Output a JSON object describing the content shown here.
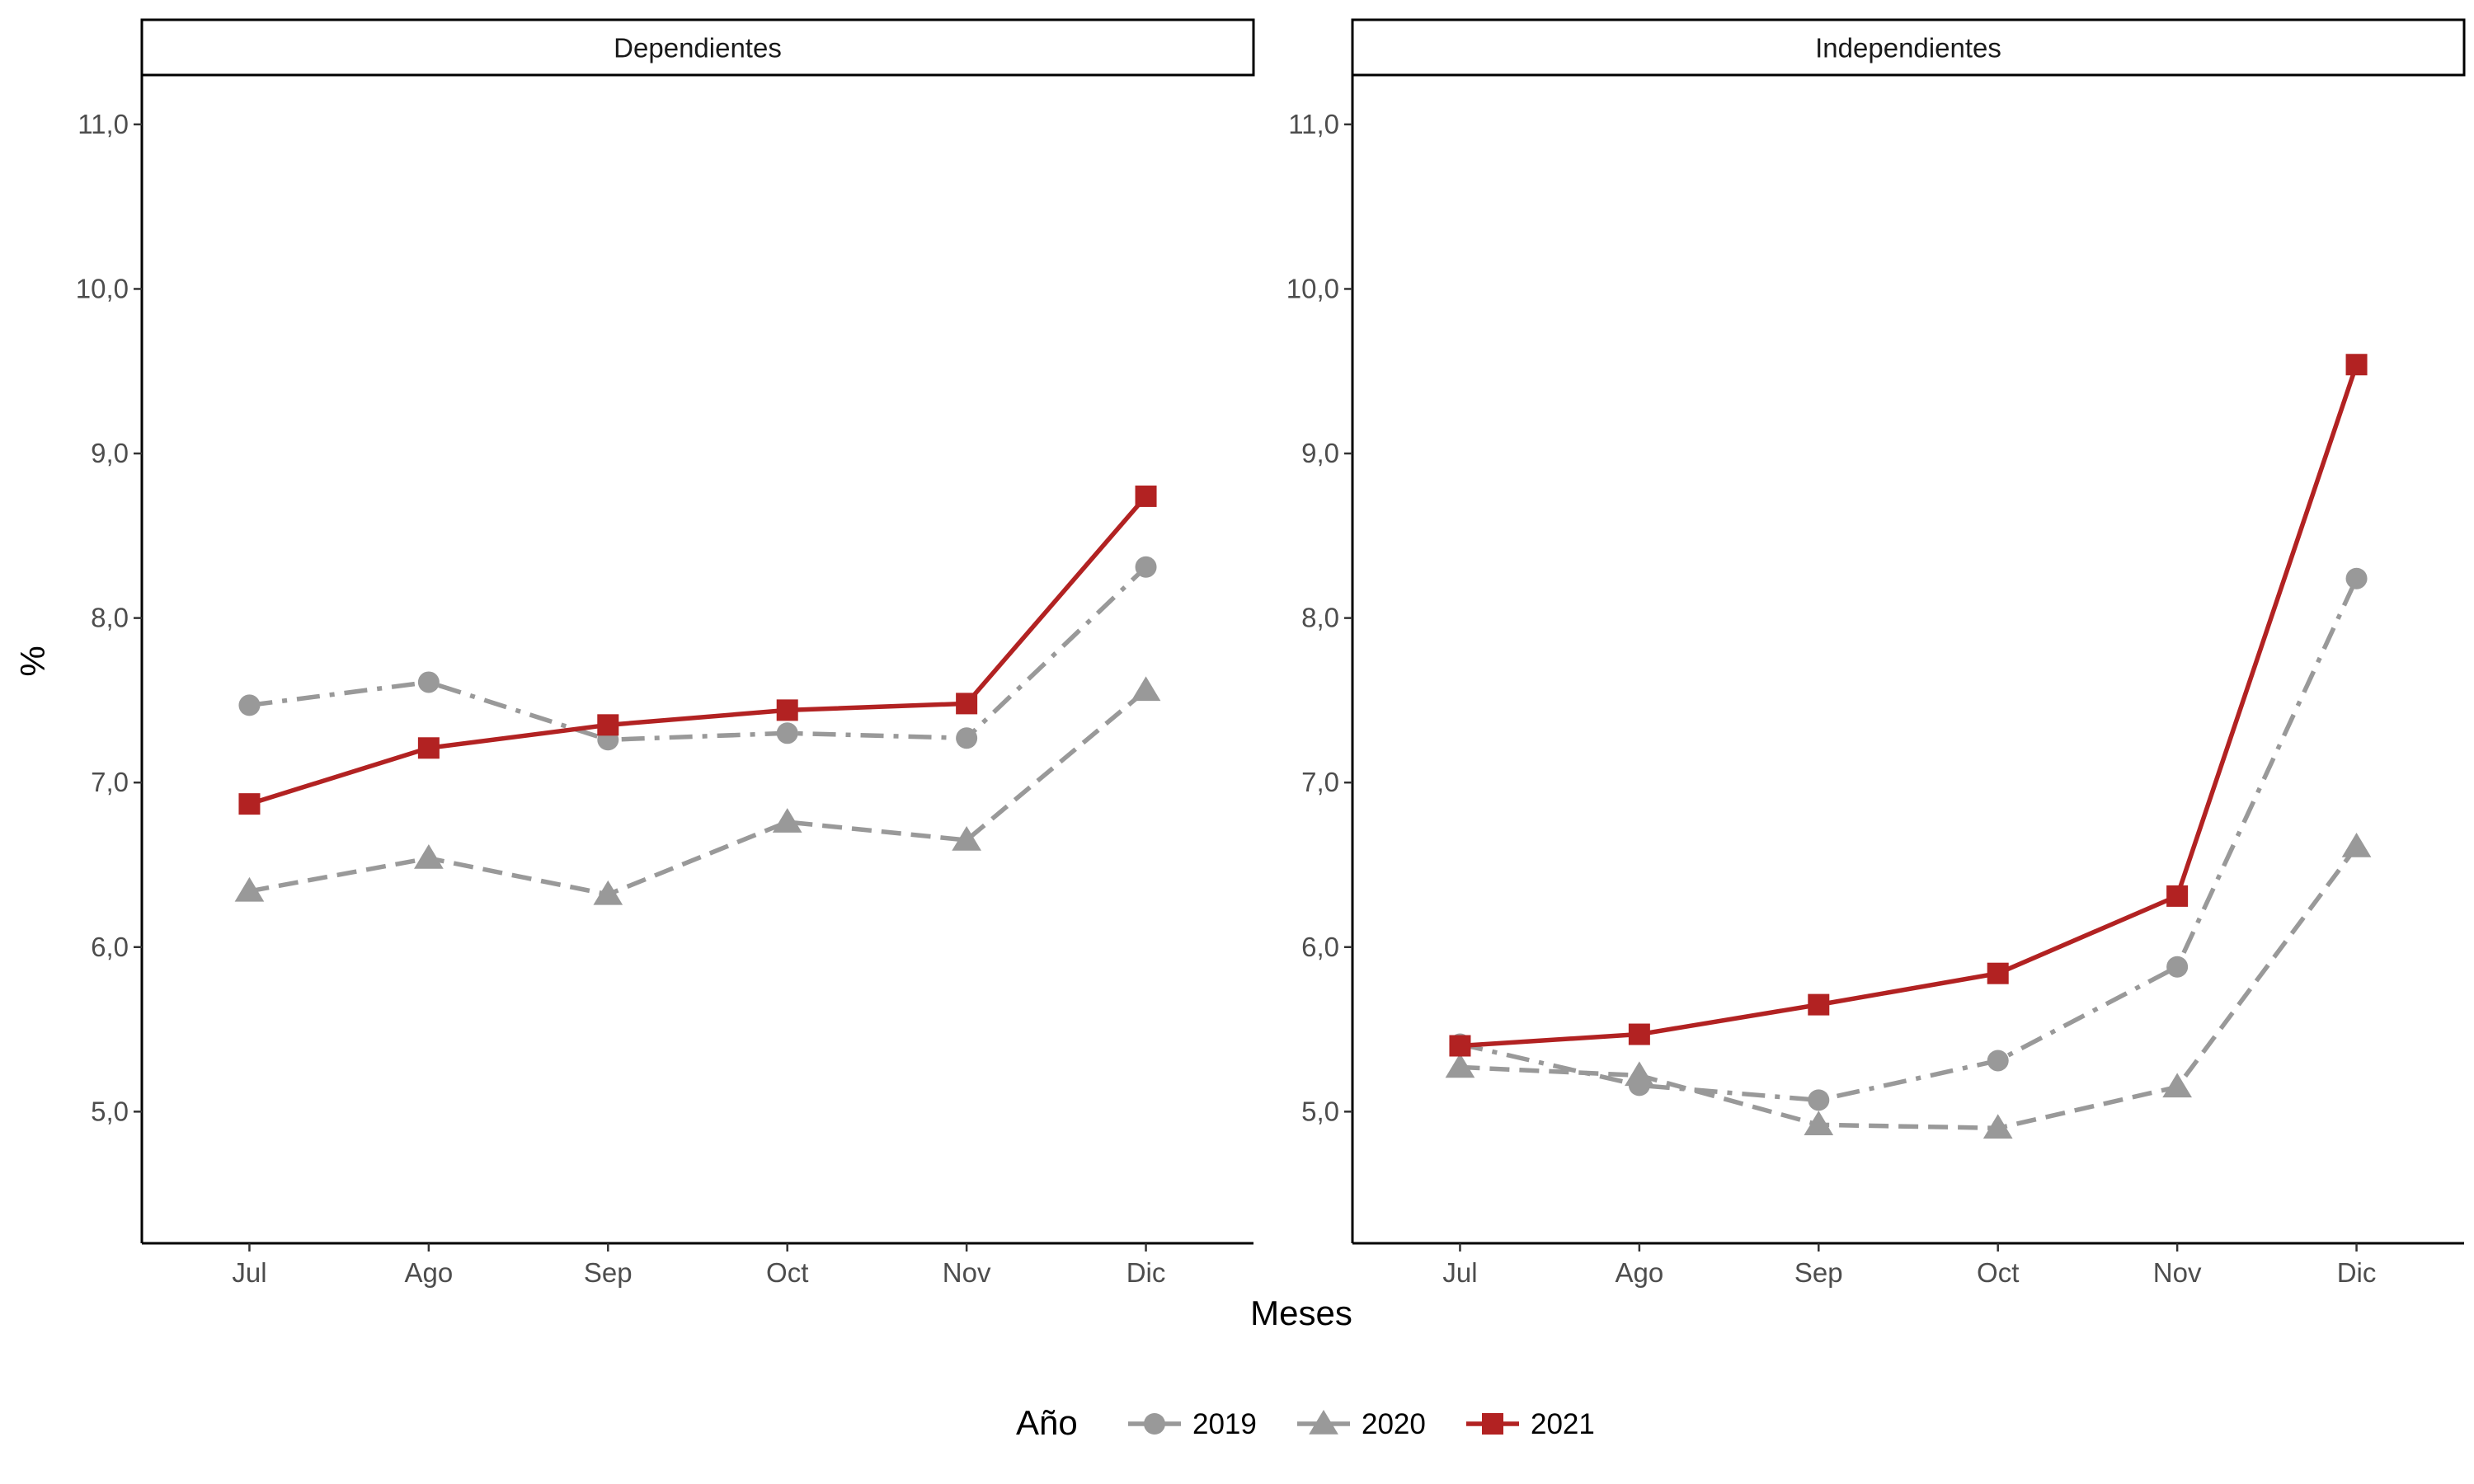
{
  "chart_data": {
    "type": "line",
    "xlabel": "Meses",
    "ylabel": "%",
    "categories": [
      "Jul",
      "Ago",
      "Sep",
      "Oct",
      "Nov",
      "Dic"
    ],
    "ylim": [
      4.2,
      11.3
    ],
    "yticks": [
      5.0,
      6.0,
      7.0,
      8.0,
      9.0,
      10.0,
      11.0
    ],
    "ytick_labels": [
      "5,0",
      "6,0",
      "7,0",
      "8,0",
      "9,0",
      "10,0",
      "11,0"
    ],
    "grid": false,
    "legend": {
      "title": "Año",
      "position": "bottom",
      "entries": [
        "2019",
        "2020",
        "2021"
      ]
    },
    "series_styles": {
      "2019": {
        "color": "#999999",
        "marker": "circle",
        "line": "dashdot"
      },
      "2020": {
        "color": "#999999",
        "marker": "triangle",
        "line": "dashed"
      },
      "2021": {
        "color": "#b22222",
        "marker": "square",
        "line": "solid"
      }
    },
    "panels": [
      {
        "title": "Dependientes",
        "series": [
          {
            "name": "2019",
            "values": [
              7.47,
              7.61,
              7.26,
              7.3,
              7.27,
              8.31
            ]
          },
          {
            "name": "2020",
            "values": [
              6.34,
              6.54,
              6.32,
              6.76,
              6.65,
              7.56
            ]
          },
          {
            "name": "2021",
            "values": [
              6.87,
              7.21,
              7.35,
              7.44,
              7.48,
              8.74
            ]
          }
        ]
      },
      {
        "title": "Independientes",
        "series": [
          {
            "name": "2019",
            "values": [
              5.41,
              5.16,
              5.07,
              5.31,
              5.88,
              8.24
            ]
          },
          {
            "name": "2020",
            "values": [
              5.27,
              5.22,
              4.92,
              4.9,
              5.15,
              6.61
            ]
          },
          {
            "name": "2021",
            "values": [
              5.4,
              5.47,
              5.65,
              5.84,
              6.31,
              9.54
            ]
          }
        ]
      }
    ]
  }
}
